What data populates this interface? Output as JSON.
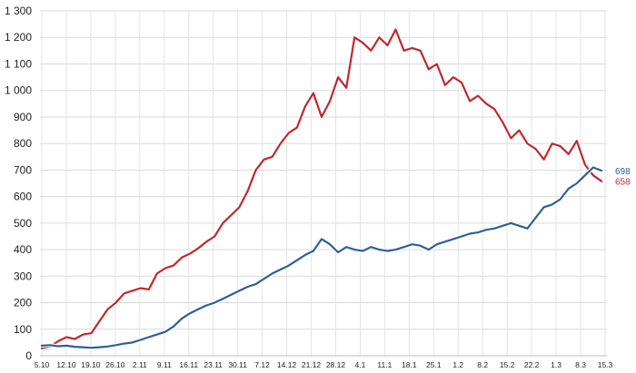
{
  "chart_data": {
    "type": "line",
    "title": "",
    "xlabel": "",
    "ylabel": "",
    "ylim": [
      0,
      1300
    ],
    "y_ticks": [
      0,
      100,
      200,
      300,
      400,
      500,
      600,
      700,
      800,
      900,
      1000,
      1100,
      1200,
      1300
    ],
    "y_tick_labels": [
      "0",
      "100",
      "200",
      "300",
      "400",
      "500",
      "600",
      "700",
      "800",
      "900",
      "1 000",
      "1 100",
      "1 200",
      "1 300"
    ],
    "x_tick_labels": [
      "5.10",
      "12.10",
      "19.10",
      "26.10",
      "2.11",
      "9.11",
      "16.11",
      "23.11",
      "30.11",
      "7.12",
      "14.12",
      "21.12",
      "28.12",
      "4.1",
      "11.1",
      "18.1",
      "25.1",
      "1.2",
      "8.2",
      "15.2",
      "22.2",
      "1.3",
      "8.3",
      "15.3"
    ],
    "grid": {
      "horizontal": true,
      "vertical": true
    },
    "legend": "none",
    "series": [
      {
        "color": "#c0282d",
        "end_label": "658",
        "values": [
          28,
          35,
          55,
          70,
          63,
          80,
          85,
          130,
          175,
          200,
          235,
          245,
          255,
          250,
          310,
          330,
          340,
          370,
          385,
          405,
          430,
          450,
          500,
          530,
          560,
          620,
          700,
          740,
          750,
          800,
          840,
          860,
          940,
          990,
          900,
          960,
          1050,
          1010,
          1200,
          1180,
          1150,
          1200,
          1170,
          1230,
          1150,
          1160,
          1150,
          1080,
          1100,
          1020,
          1050,
          1030,
          960,
          980,
          950,
          930,
          880,
          820,
          850,
          800,
          780,
          740,
          800,
          790,
          760,
          810,
          720,
          680,
          658
        ]
      },
      {
        "color": "#2f5f9a",
        "end_label": "698",
        "values": [
          38,
          40,
          36,
          38,
          34,
          32,
          30,
          32,
          35,
          40,
          46,
          50,
          60,
          70,
          80,
          90,
          110,
          140,
          160,
          175,
          190,
          200,
          215,
          230,
          245,
          260,
          270,
          290,
          310,
          325,
          340,
          360,
          380,
          395,
          440,
          420,
          390,
          410,
          400,
          395,
          410,
          400,
          395,
          400,
          410,
          420,
          415,
          400,
          420,
          430,
          440,
          450,
          460,
          465,
          475,
          480,
          490,
          500,
          490,
          480,
          520,
          560,
          570,
          590,
          630,
          650,
          680,
          710,
          698
        ]
      }
    ]
  }
}
